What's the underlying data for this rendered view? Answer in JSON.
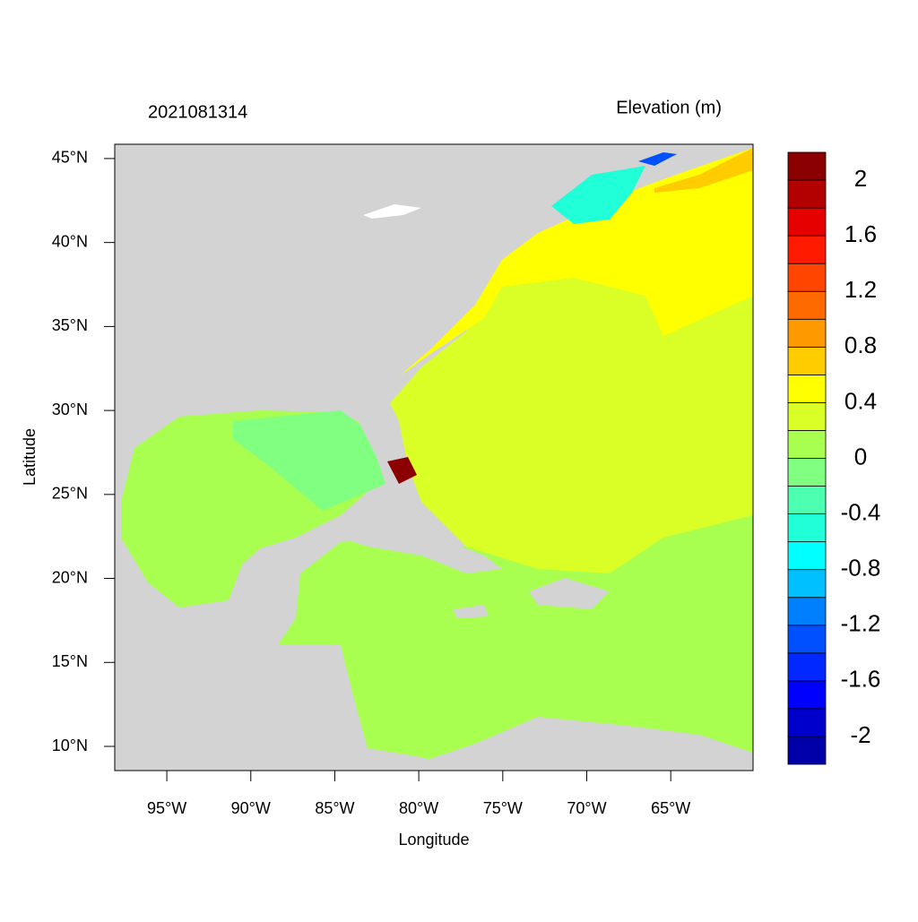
{
  "chart_data": {
    "type": "filled-map",
    "title": "2021081314",
    "colorbar_title": "Elevation (m)",
    "x_label": "Longitude",
    "y_label": "Latitude",
    "xlim": [
      -98.1,
      -60.1
    ],
    "ylim": [
      8.56,
      45.85
    ],
    "xticks": [
      {
        "value": -95,
        "label": "95°W"
      },
      {
        "value": -90,
        "label": "90°W"
      },
      {
        "value": -85,
        "label": "85°W"
      },
      {
        "value": -80,
        "label": "80°W"
      },
      {
        "value": -75,
        "label": "75°W"
      },
      {
        "value": -70,
        "label": "70°W"
      },
      {
        "value": -65,
        "label": "65°W"
      }
    ],
    "yticks": [
      {
        "value": 10,
        "label": "10°N"
      },
      {
        "value": 15,
        "label": "15°N"
      },
      {
        "value": 20,
        "label": "20°N"
      },
      {
        "value": 25,
        "label": "25°N"
      },
      {
        "value": 30,
        "label": "30°N"
      },
      {
        "value": 35,
        "label": "35°N"
      },
      {
        "value": 40,
        "label": "40°N"
      },
      {
        "value": 45,
        "label": "45°N"
      }
    ],
    "levels": [
      -2.2,
      -2,
      -1.8,
      -1.6,
      -1.4,
      -1.2,
      -1,
      -0.8,
      -0.6,
      -0.4,
      -0.2,
      0,
      0.2,
      0.4,
      0.6,
      0.8,
      1,
      1.2,
      1.4,
      1.6,
      1.8,
      2,
      2.2
    ],
    "colors": [
      "#0000aa",
      "#0000cd",
      "#0000ff",
      "#0028ff",
      "#0050ff",
      "#0080ff",
      "#00c0ff",
      "#00ffff",
      "#20ffd8",
      "#4dffb0",
      "#80ff80",
      "#a8ff50",
      "#d9ff26",
      "#ffff00",
      "#ffcc00",
      "#ff9900",
      "#ff6a00",
      "#ff4500",
      "#ff1a00",
      "#e60000",
      "#b30000",
      "#8b0000"
    ],
    "colorbar_ticks": [
      -2,
      -1.6,
      -1.2,
      -0.8,
      -0.4,
      0,
      0.4,
      0.8,
      1.2,
      1.6,
      2
    ]
  }
}
